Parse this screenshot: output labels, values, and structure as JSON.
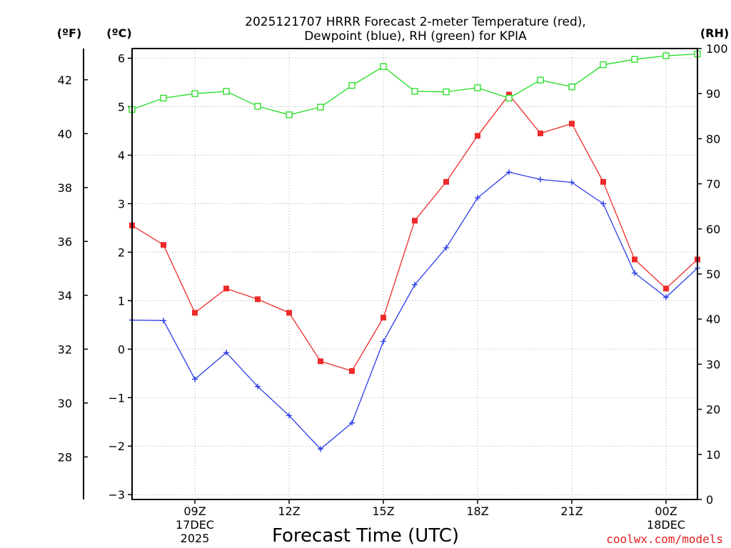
{
  "chart_data": {
    "type": "line",
    "title_line1": "2025121707 HRRR Forecast 2-meter Temperature (red),",
    "title_line2": "Dewpoint (blue), RH (green) for KPIA",
    "xlabel": "Forecast Time (UTC)",
    "left_unit_f": "(ºF)",
    "left_unit_c": "(ºC)",
    "right_unit": "(RH)",
    "credit": "coolwx.com/models",
    "credit_color": "#e02020",
    "x": [
      7,
      8,
      9,
      10,
      11,
      12,
      13,
      14,
      15,
      16,
      17,
      18,
      19,
      20,
      21,
      22,
      23,
      24,
      25
    ],
    "xlim": [
      7,
      25
    ],
    "x_ticks": [
      {
        "x": 9,
        "label": "09Z",
        "sub1": "17DEC",
        "sub2": "2025"
      },
      {
        "x": 12,
        "label": "12Z",
        "sub1": "",
        "sub2": ""
      },
      {
        "x": 15,
        "label": "15Z",
        "sub1": "",
        "sub2": ""
      },
      {
        "x": 18,
        "label": "18Z",
        "sub1": "",
        "sub2": ""
      },
      {
        "x": 21,
        "label": "21Z",
        "sub1": "",
        "sub2": ""
      },
      {
        "x": 24,
        "label": "00Z",
        "sub1": "18DEC",
        "sub2": ""
      }
    ],
    "ylim_c": [
      -3.1,
      6.2
    ],
    "y_ticks_c": [
      "−3",
      "−2",
      "−1",
      "0",
      "1",
      "2",
      "3",
      "4",
      "5",
      "6"
    ],
    "y_ticks_f": [
      "28",
      "30",
      "32",
      "34",
      "36",
      "38",
      "40",
      "42"
    ],
    "ylim_rh": [
      0,
      100
    ],
    "y_ticks_rh": [
      "0",
      "10",
      "20",
      "30",
      "40",
      "50",
      "60",
      "70",
      "80",
      "90",
      "100"
    ],
    "series": [
      {
        "name": "Temperature",
        "color": "#ee2a2a",
        "marker": "filled-square",
        "axis": "c",
        "values": [
          2.55,
          2.15,
          0.75,
          1.25,
          1.03,
          0.75,
          -0.25,
          -0.45,
          0.65,
          2.65,
          3.45,
          4.4,
          5.25,
          4.45,
          4.65,
          3.45,
          1.85,
          1.25,
          1.85
        ]
      },
      {
        "name": "Dewpoint",
        "color": "#2a3ce8",
        "marker": "plus",
        "axis": "c",
        "values": [
          0.6,
          0.59,
          -0.62,
          -0.07,
          -0.77,
          -1.37,
          -2.06,
          -1.52,
          0.16,
          1.33,
          2.09,
          3.12,
          3.65,
          3.5,
          3.44,
          3.0,
          1.57,
          1.07,
          1.67
        ]
      },
      {
        "name": "RH",
        "color": "#22dd22",
        "marker": "open-square",
        "axis": "rh",
        "values": [
          86.5,
          89.0,
          90.0,
          90.5,
          87.2,
          85.3,
          87.0,
          91.8,
          96.0,
          90.5,
          90.4,
          91.3,
          89.0,
          93.0,
          91.5,
          96.4,
          97.6,
          98.4,
          98.8
        ]
      }
    ]
  }
}
